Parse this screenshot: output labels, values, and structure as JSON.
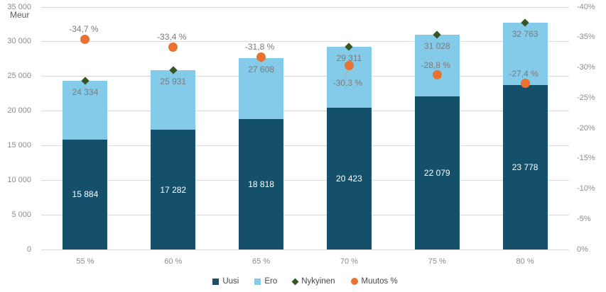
{
  "chart_data": {
    "type": "bar",
    "subtype": "stacked-bars-with-scatter-overlay",
    "title": "",
    "ylabel": "Meur",
    "categories": [
      "55 %",
      "60 %",
      "65 %",
      "70 %",
      "75 %",
      "80 %"
    ],
    "series": [
      {
        "name": "Uusi",
        "type": "bar-stack",
        "color": "#15506B",
        "values": [
          15884,
          17282,
          18818,
          20423,
          22079,
          23778
        ],
        "value_labels": [
          "15 884",
          "17 282",
          "18 818",
          "20 423",
          "22 079",
          "23 778"
        ],
        "label_color": "#FFFFFF"
      },
      {
        "name": "Ero",
        "type": "bar-stack",
        "color": "#84CAE9",
        "values": [
          8450,
          8649,
          8790,
          8888,
          8949,
          8985
        ]
      },
      {
        "name": "Nykyinen",
        "type": "scatter",
        "marker": "diamond",
        "color": "#375623",
        "axis": "left",
        "values": [
          24334,
          25931,
          27608,
          29311,
          31028,
          32763
        ],
        "value_labels": [
          "24 334",
          "25 931",
          "27 608",
          "29 311",
          "31 028",
          "32 763"
        ]
      },
      {
        "name": "Muutos %",
        "type": "scatter",
        "marker": "circle",
        "color": "#E97132",
        "axis": "right",
        "values": [
          -34.7,
          -33.4,
          -31.8,
          -30.3,
          -28.8,
          -27.4
        ],
        "value_labels": [
          "-34,7 %",
          "-33,4 %",
          "-31,8 %",
          "-30,3 %",
          "-28,8 %",
          "-27,4 %"
        ],
        "label_positions": [
          "above",
          "above",
          "above",
          "below",
          "above",
          "above"
        ]
      }
    ],
    "left_axis": {
      "min": 0,
      "max": 35000,
      "step": 5000,
      "tick_labels": [
        "35 000",
        "30 000",
        "25 000",
        "20 000",
        "15 000",
        "10 000",
        "5 000",
        "0"
      ]
    },
    "right_axis": {
      "min": 0,
      "max": -40,
      "step": -5,
      "tick_labels": [
        "-40%",
        "-35%",
        "-30%",
        "-25%",
        "-20%",
        "-15%",
        "-10%",
        "-5%",
        "0%"
      ]
    },
    "grid": "horizontal",
    "legend_position": "bottom",
    "colors": {
      "gridline": "#D9D9D9",
      "axis_text": "#8C8C8C",
      "data_label_gray": "#7A7A7A",
      "legend_text": "#474747",
      "leader_line": "#D9A98C",
      "background": "#FFFFFF"
    }
  }
}
